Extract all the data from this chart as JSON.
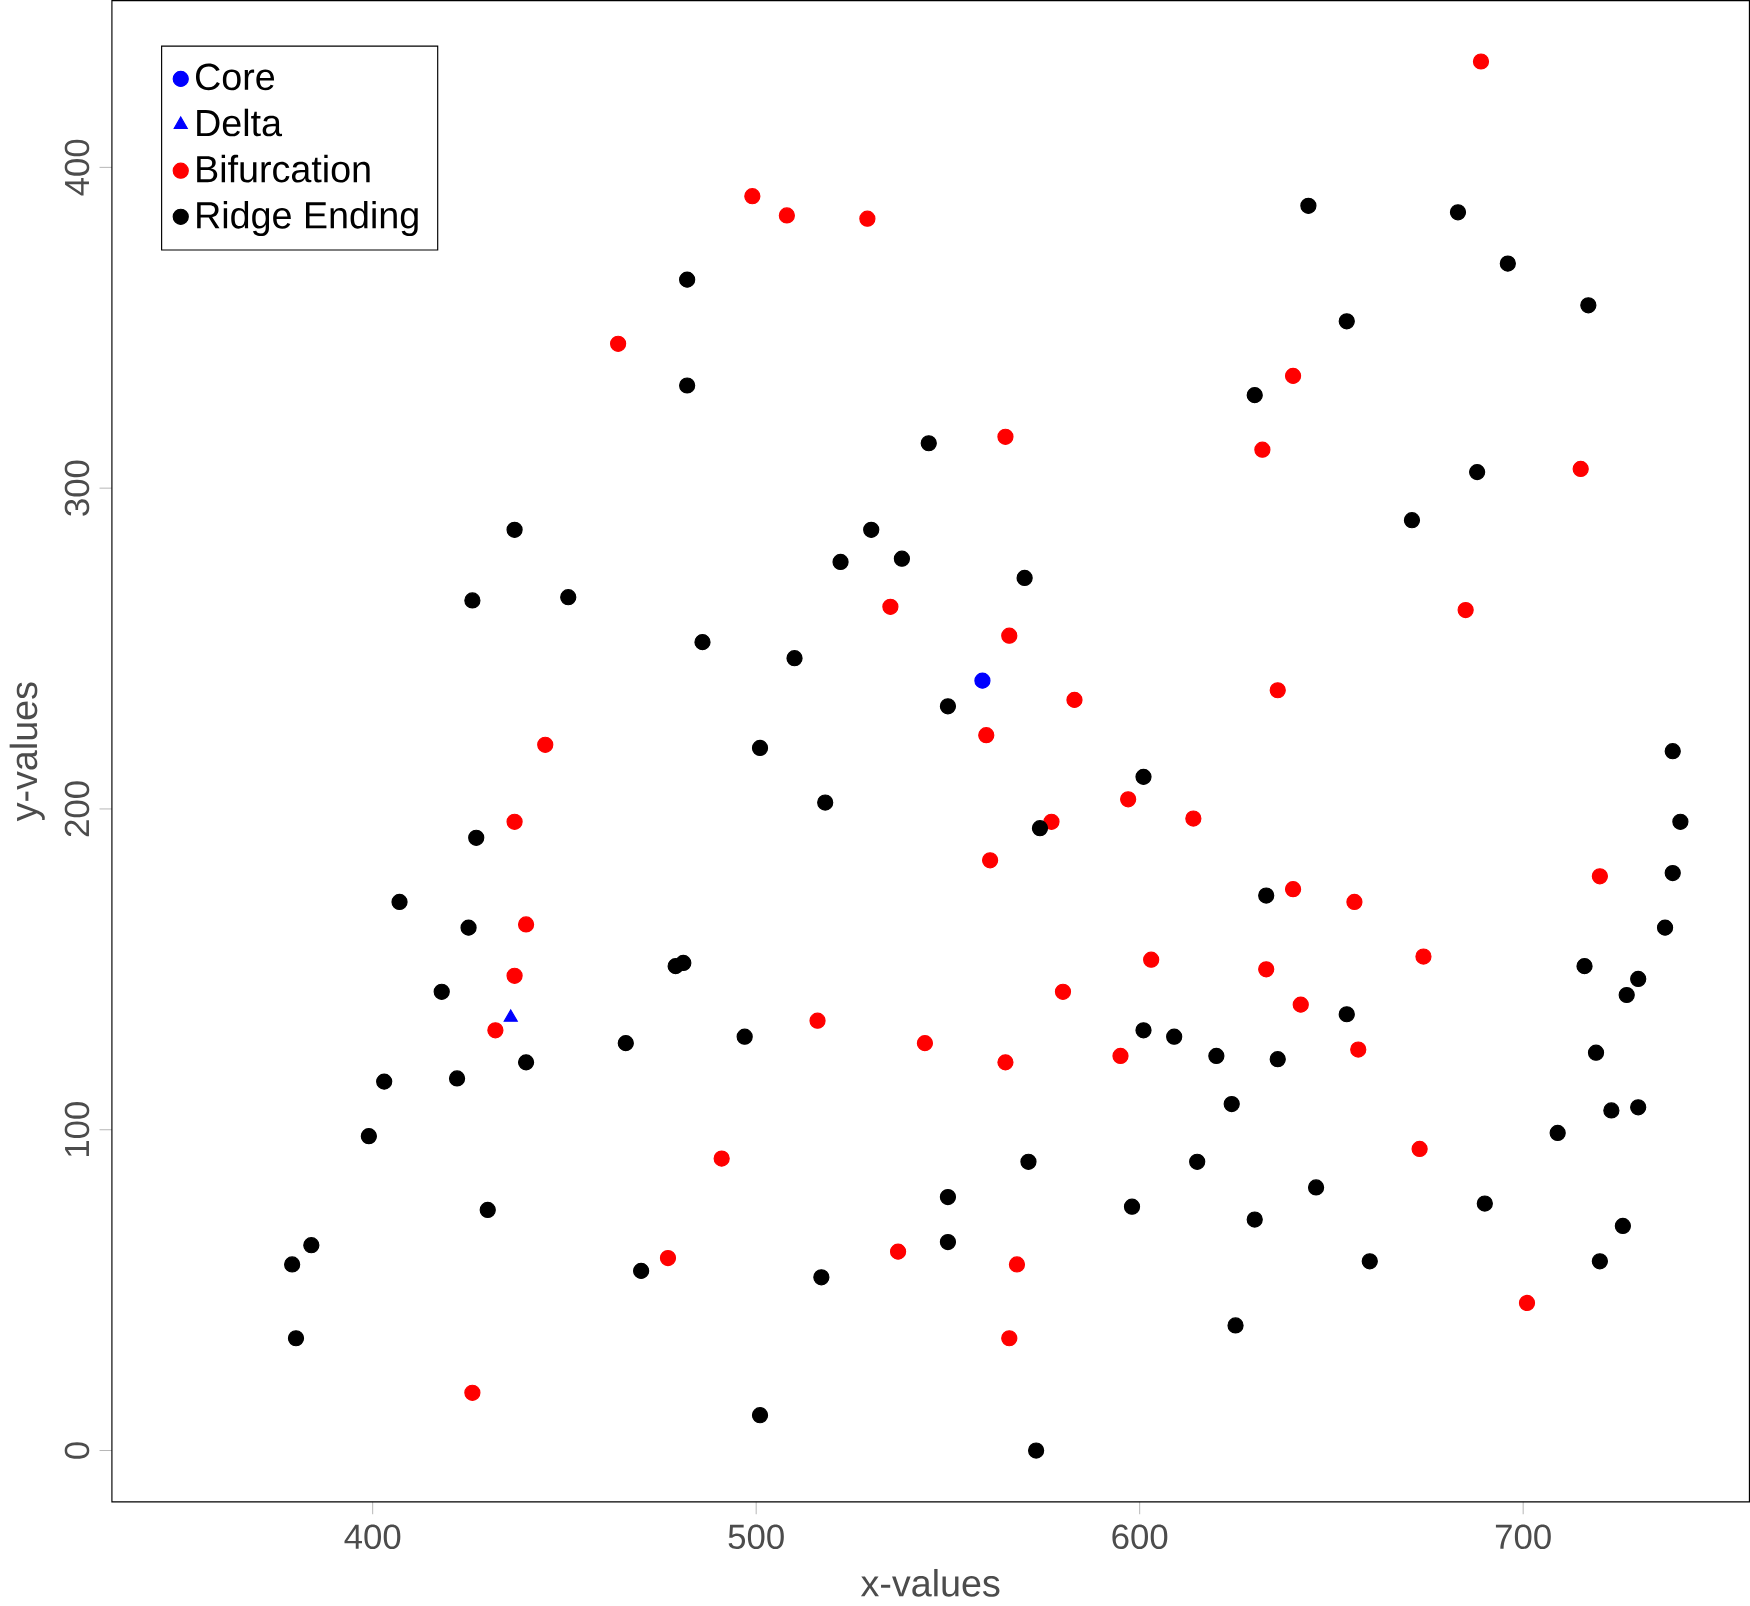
{
  "chart_data": {
    "type": "scatter",
    "xlabel": "x-values",
    "ylabel": "y-values",
    "xlim": [
      332,
      759
    ],
    "ylim": [
      -16,
      452
    ],
    "xticks": [
      400,
      500,
      600,
      700
    ],
    "yticks": [
      0,
      100,
      200,
      300,
      400
    ],
    "grid": false,
    "legend": "top left",
    "series": [
      {
        "name": "Core",
        "color": "#0000ff",
        "marker": "circle",
        "x": [
          559
        ],
        "values": [
          240
        ]
      },
      {
        "name": "Delta",
        "color": "#0000ff",
        "marker": "triangle",
        "x": [
          436
        ],
        "values": [
          135
        ]
      },
      {
        "name": "Bifurcation",
        "color": "#ff0000",
        "marker": "circle",
        "x": [
          689,
          499,
          508,
          529,
          464,
          565,
          640,
          632,
          715,
          535,
          685,
          566,
          636,
          445,
          437,
          583,
          560,
          597,
          577,
          614,
          440,
          437,
          432,
          561,
          640,
          603,
          656,
          633,
          674,
          720,
          580,
          642,
          516,
          544,
          565,
          595,
          657,
          673,
          491,
          477,
          537,
          568,
          566,
          701,
          426
        ],
        "values": [
          433,
          391,
          385,
          384,
          345,
          316,
          335,
          312,
          306,
          263,
          262,
          254,
          237,
          220,
          196,
          234,
          223,
          203,
          196,
          197,
          164,
          148,
          131,
          184,
          175,
          153,
          171,
          150,
          154,
          179,
          143,
          139,
          134,
          127,
          121,
          123,
          125,
          94,
          91,
          60,
          62,
          58,
          35,
          46,
          18
        ]
      },
      {
        "name": "Ridge Ending",
        "color": "#000000",
        "marker": "circle",
        "x": [
          644,
          683,
          696,
          717,
          654,
          482,
          482,
          545,
          630,
          688,
          671,
          437,
          451,
          426,
          530,
          522,
          538,
          570,
          486,
          510,
          550,
          501,
          518,
          427,
          407,
          425,
          601,
          574,
          633,
          418,
          481,
          479,
          466,
          497,
          440,
          422,
          403,
          399,
          601,
          609,
          620,
          624,
          636,
          654,
          716,
          727,
          737,
          739,
          741,
          739,
          730,
          719,
          723,
          730,
          709,
          690,
          646,
          630,
          615,
          598,
          571,
          550,
          550,
          517,
          470,
          430,
          384,
          379,
          380,
          501,
          573,
          625,
          660,
          720,
          726
        ],
        "values": [
          388,
          386,
          370,
          357,
          352,
          365,
          332,
          314,
          329,
          305,
          290,
          287,
          266,
          265,
          287,
          277,
          278,
          272,
          252,
          247,
          232,
          219,
          202,
          191,
          171,
          163,
          210,
          194,
          173,
          143,
          152,
          151,
          127,
          129,
          121,
          116,
          115,
          98,
          131,
          129,
          123,
          108,
          122,
          136,
          151,
          142,
          163,
          180,
          196,
          218,
          147,
          124,
          106,
          107,
          99,
          77,
          82,
          72,
          90,
          76,
          90,
          79,
          65,
          54,
          56,
          75,
          64,
          58,
          35,
          11,
          0,
          39,
          59,
          59,
          70
        ]
      }
    ]
  }
}
